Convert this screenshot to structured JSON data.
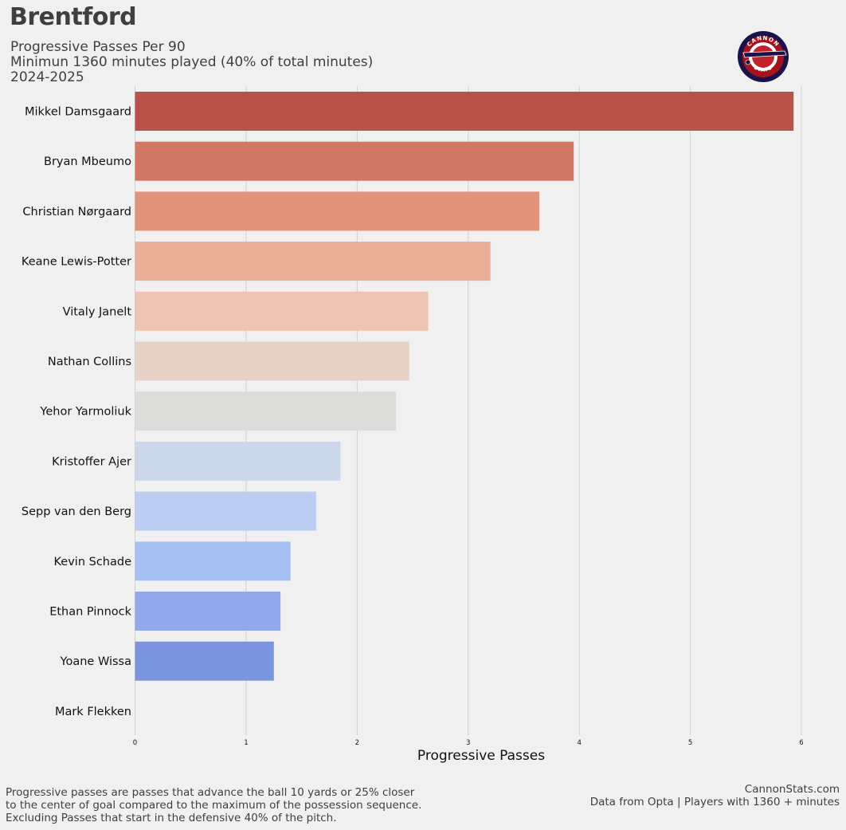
{
  "header": {
    "team": "Brentford",
    "subtitle_lines": [
      "Progressive Passes Per 90",
      "Minimun 1360 minutes played (40% of total minutes)",
      "2024-2025"
    ],
    "logo_top_text": "CANNON",
    "logo_bottom_text": "STATS"
  },
  "chart_data": {
    "type": "bar",
    "orientation": "horizontal",
    "xlabel": "Progressive Passes",
    "ylabel": "",
    "xlim": [
      0,
      6.2
    ],
    "xticks": [
      0,
      1,
      2,
      3,
      4,
      5,
      6
    ],
    "grid": "x",
    "categories": [
      "Mikkel Damsgaard",
      "Bryan Mbeumo",
      "Christian Nørgaard",
      "Keane Lewis-Potter",
      "Vitaly Janelt",
      "Nathan Collins",
      "Yehor Yarmoliuk",
      "Kristoffer Ajer",
      "Sepp van den Berg",
      "Kevin Schade",
      "Ethan Pinnock",
      "Yoane Wissa",
      "Mark Flekken"
    ],
    "values": [
      5.93,
      3.95,
      3.64,
      3.2,
      2.64,
      2.47,
      2.35,
      1.85,
      1.63,
      1.4,
      1.31,
      1.25,
      0.0
    ],
    "colors": [
      "#b8534b",
      "#d17765",
      "#e1937b",
      "#eaae98",
      "#edc3b2",
      "#e8d1c7",
      "#dcdddb",
      "#ccd7ea",
      "#bbcef2",
      "#a6bff2",
      "#91a9eb",
      "#7a94de",
      "#6277cf"
    ]
  },
  "footer": {
    "note_lines": [
      "Progressive passes are passes that advance the ball 10 yards or 25% closer",
      "to the center of goal compared to the maximum of the possession sequence.",
      "Excluding Passes that start in the defensive 40% of the pitch."
    ],
    "credit_lines": [
      "CannonStats.com",
      "Data from Opta | Players with 1360 + minutes"
    ]
  }
}
